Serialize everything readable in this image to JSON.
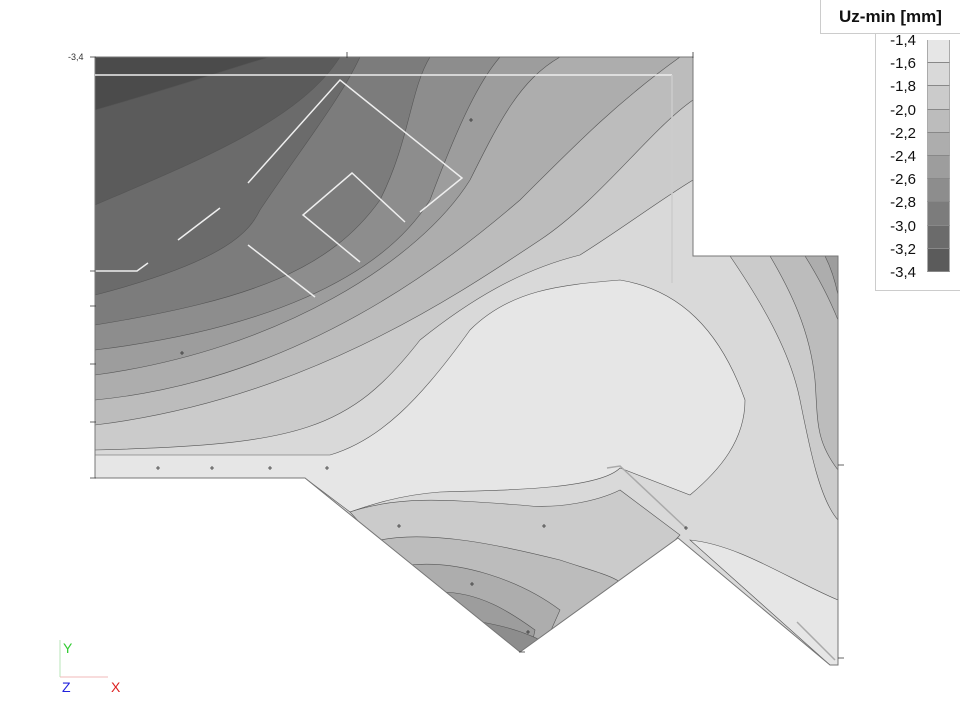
{
  "chart_data": {
    "type": "heatmap",
    "title": "Uz-min [mm]",
    "levels": [
      "-1,4",
      "-1,6",
      "-1,8",
      "-2,0",
      "-2,2",
      "-2,4",
      "-2,6",
      "-2,8",
      "-3,0",
      "-3,2",
      "-3,4"
    ],
    "band_colors": [
      "#e6e6e6",
      "#d9d9d9",
      "#cbcbcb",
      "#bcbcbc",
      "#adadad",
      "#9d9d9d",
      "#8d8d8d",
      "#7c7c7c",
      "#6b6b6b",
      "#5b5b5b"
    ],
    "corner_value": "-3,4"
  },
  "axes": {
    "y": "Y",
    "z": "Z",
    "x": "X",
    "y_color": "#33cc33",
    "z_color": "#2222dd",
    "x_color": "#dd2222"
  }
}
